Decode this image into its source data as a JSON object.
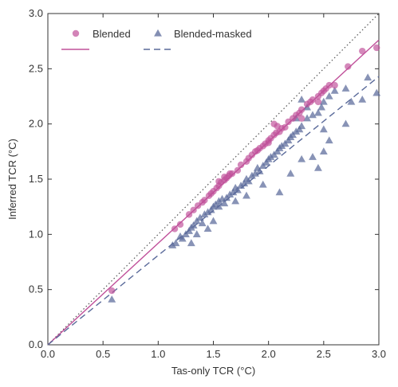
{
  "chart_data": {
    "type": "scatter",
    "xlabel": "Tas-only TCR (°C)",
    "ylabel": "Inferred TCR (°C)",
    "xlim": [
      0,
      3
    ],
    "ylim": [
      0,
      3
    ],
    "x_ticks": [
      "0.0",
      "0.5",
      "1.0",
      "1.5",
      "2.0",
      "2.5",
      "3.0"
    ],
    "y_ticks": [
      "0.0",
      "0.5",
      "1.0",
      "1.5",
      "2.0",
      "2.5",
      "3.0"
    ],
    "grid": false,
    "legend_position": "top-left",
    "colors": {
      "blended": "#c0509a",
      "blended_masked": "#5a6a9a",
      "one_to_one": "#555555",
      "axis": "#333333"
    },
    "series": [
      {
        "name": "Blended",
        "marker": "circle",
        "fit": {
          "slope": 0.92,
          "intercept": 0.0,
          "style": "solid"
        },
        "points": [
          [
            0.58,
            0.49
          ],
          [
            1.15,
            1.05
          ],
          [
            1.2,
            1.09
          ],
          [
            1.28,
            1.18
          ],
          [
            1.32,
            1.22
          ],
          [
            1.36,
            1.26
          ],
          [
            1.4,
            1.29
          ],
          [
            1.42,
            1.31
          ],
          [
            1.46,
            1.35
          ],
          [
            1.5,
            1.39
          ],
          [
            1.53,
            1.42
          ],
          [
            1.55,
            1.44
          ],
          [
            1.57,
            1.47
          ],
          [
            1.6,
            1.49
          ],
          [
            1.62,
            1.51
          ],
          [
            1.64,
            1.53
          ],
          [
            1.65,
            1.55
          ],
          [
            1.67,
            1.55
          ],
          [
            1.55,
            1.48
          ],
          [
            1.6,
            1.52
          ],
          [
            1.75,
            1.63
          ],
          [
            1.82,
            1.69
          ],
          [
            1.85,
            1.72
          ],
          [
            1.88,
            1.75
          ],
          [
            1.92,
            1.78
          ],
          [
            1.95,
            1.8
          ],
          [
            1.97,
            1.82
          ],
          [
            2.0,
            1.85
          ],
          [
            2.02,
            1.87
          ],
          [
            2.05,
            1.9
          ],
          [
            2.07,
            1.92
          ],
          [
            2.1,
            1.93
          ],
          [
            2.12,
            1.96
          ],
          [
            2.15,
            1.97
          ],
          [
            2.18,
            2.02
          ],
          [
            2.05,
            2.0
          ],
          [
            2.08,
            1.98
          ],
          [
            2.22,
            2.05
          ],
          [
            2.25,
            2.08
          ],
          [
            2.28,
            2.1
          ],
          [
            2.3,
            2.13
          ],
          [
            2.35,
            2.18
          ],
          [
            2.38,
            2.2
          ],
          [
            2.4,
            2.22
          ],
          [
            2.45,
            2.25
          ],
          [
            2.48,
            2.28
          ],
          [
            2.5,
            2.3
          ],
          [
            2.52,
            2.32
          ],
          [
            2.55,
            2.35
          ],
          [
            2.6,
            2.35
          ],
          [
            2.72,
            2.52
          ],
          [
            2.85,
            2.66
          ],
          [
            2.98,
            2.69
          ],
          [
            2.45,
            2.2
          ],
          [
            2.3,
            2.05
          ],
          [
            1.72,
            1.58
          ],
          [
            1.8,
            1.66
          ],
          [
            1.9,
            1.76
          ],
          [
            2.0,
            1.83
          ],
          [
            1.48,
            1.37
          ]
        ]
      },
      {
        "name": "Blended-masked",
        "marker": "triangle",
        "fit": {
          "slope": 0.81,
          "intercept": 0.0,
          "style": "dashed"
        },
        "points": [
          [
            0.58,
            0.41
          ],
          [
            1.13,
            0.9
          ],
          [
            1.16,
            0.92
          ],
          [
            1.2,
            0.98
          ],
          [
            1.22,
            0.96
          ],
          [
            1.25,
            1.0
          ],
          [
            1.28,
            1.03
          ],
          [
            1.3,
            1.06
          ],
          [
            1.32,
            1.08
          ],
          [
            1.35,
            1.12
          ],
          [
            1.38,
            1.15
          ],
          [
            1.4,
            1.1
          ],
          [
            1.42,
            1.18
          ],
          [
            1.45,
            1.2
          ],
          [
            1.48,
            1.22
          ],
          [
            1.5,
            1.25
          ],
          [
            1.52,
            1.27
          ],
          [
            1.55,
            1.3
          ],
          [
            1.58,
            1.32
          ],
          [
            1.6,
            1.28
          ],
          [
            1.62,
            1.33
          ],
          [
            1.65,
            1.36
          ],
          [
            1.68,
            1.38
          ],
          [
            1.7,
            1.42
          ],
          [
            1.72,
            1.4
          ],
          [
            1.75,
            1.44
          ],
          [
            1.78,
            1.46
          ],
          [
            1.8,
            1.5
          ],
          [
            1.82,
            1.48
          ],
          [
            1.85,
            1.53
          ],
          [
            1.88,
            1.55
          ],
          [
            1.9,
            1.6
          ],
          [
            1.92,
            1.57
          ],
          [
            1.95,
            1.62
          ],
          [
            1.98,
            1.65
          ],
          [
            2.0,
            1.68
          ],
          [
            2.02,
            1.7
          ],
          [
            2.05,
            1.72
          ],
          [
            2.08,
            1.75
          ],
          [
            2.1,
            1.78
          ],
          [
            2.12,
            1.8
          ],
          [
            2.15,
            1.82
          ],
          [
            2.18,
            1.85
          ],
          [
            2.2,
            1.88
          ],
          [
            2.22,
            1.9
          ],
          [
            2.25,
            1.93
          ],
          [
            2.28,
            1.95
          ],
          [
            2.3,
            1.98
          ],
          [
            2.35,
            2.05
          ],
          [
            2.4,
            2.08
          ],
          [
            2.45,
            2.1
          ],
          [
            2.48,
            2.15
          ],
          [
            2.5,
            2.2
          ],
          [
            2.55,
            2.25
          ],
          [
            2.6,
            2.3
          ],
          [
            2.7,
            2.32
          ],
          [
            2.75,
            2.2
          ],
          [
            2.85,
            2.22
          ],
          [
            2.98,
            2.28
          ],
          [
            2.9,
            2.42
          ],
          [
            2.7,
            2.0
          ],
          [
            2.55,
            1.85
          ],
          [
            2.5,
            1.75
          ],
          [
            2.4,
            1.7
          ],
          [
            2.3,
            1.68
          ],
          [
            2.1,
            1.38
          ],
          [
            1.95,
            1.45
          ],
          [
            2.2,
            1.55
          ],
          [
            2.45,
            1.6
          ],
          [
            2.5,
            1.95
          ],
          [
            2.35,
            2.15
          ],
          [
            2.3,
            2.22
          ],
          [
            2.25,
            2.05
          ],
          [
            1.8,
            1.35
          ],
          [
            1.7,
            1.3
          ],
          [
            1.5,
            1.12
          ],
          [
            1.35,
            1.0
          ],
          [
            1.3,
            0.92
          ],
          [
            1.45,
            1.05
          ],
          [
            1.55,
            1.25
          ]
        ]
      }
    ],
    "one_to_one_line": {
      "style": "dotted"
    }
  }
}
